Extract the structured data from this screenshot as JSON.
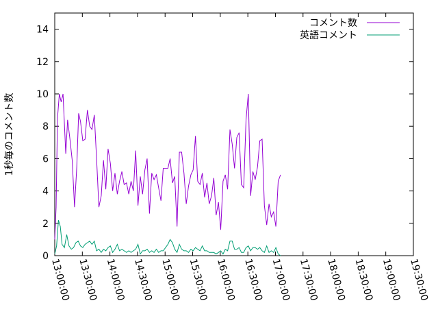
{
  "chart_data": {
    "type": "line",
    "title": "",
    "xlabel": "",
    "ylabel": "1秒毎のコメント数",
    "xlim": [
      "13:00:00",
      "19:30:00"
    ],
    "ylim": [
      0,
      15
    ],
    "yticks": [
      0,
      2,
      4,
      6,
      8,
      10,
      12,
      14
    ],
    "xticks": [
      "13:00:00",
      "13:30:00",
      "14:00:00",
      "14:30:00",
      "15:00:00",
      "15:30:00",
      "16:00:00",
      "16:30:00",
      "17:00:00",
      "17:30:00",
      "18:00:00",
      "18:30:00",
      "19:00:00",
      "19:30:00"
    ],
    "legend_position": "top-right",
    "grid": false,
    "series": [
      {
        "name": "コメント数",
        "color": "#9400d3",
        "points": [
          [
            "13:00:00",
            1.0
          ],
          [
            "13:01:30",
            3.0
          ],
          [
            "13:03:00",
            8.5
          ],
          [
            "13:05:00",
            10.0
          ],
          [
            "13:07:00",
            9.5
          ],
          [
            "13:09:00",
            10.0
          ],
          [
            "13:12:00",
            6.3
          ],
          [
            "13:14:00",
            8.4
          ],
          [
            "13:16:30",
            7.2
          ],
          [
            "13:19:00",
            5.9
          ],
          [
            "13:21:30",
            3.0
          ],
          [
            "13:24:00",
            5.5
          ],
          [
            "13:26:00",
            8.8
          ],
          [
            "13:28:00",
            8.3
          ],
          [
            "13:30:30",
            7.1
          ],
          [
            "13:33:00",
            7.2
          ],
          [
            "13:35:30",
            9.0
          ],
          [
            "13:38:00",
            8.0
          ],
          [
            "13:40:30",
            7.8
          ],
          [
            "13:43:00",
            8.7
          ],
          [
            "13:45:30",
            6.0
          ],
          [
            "13:48:00",
            3.0
          ],
          [
            "13:50:30",
            3.7
          ],
          [
            "13:53:00",
            5.9
          ],
          [
            "13:55:30",
            4.1
          ],
          [
            "13:58:00",
            6.6
          ],
          [
            "14:00:30",
            5.7
          ],
          [
            "14:03:00",
            4.0
          ],
          [
            "14:05:30",
            5.1
          ],
          [
            "14:08:00",
            3.8
          ],
          [
            "14:10:30",
            4.6
          ],
          [
            "14:13:00",
            5.2
          ],
          [
            "14:15:30",
            4.4
          ],
          [
            "14:18:00",
            4.5
          ],
          [
            "14:20:30",
            3.8
          ],
          [
            "14:23:00",
            4.6
          ],
          [
            "14:25:30",
            4.0
          ],
          [
            "14:28:00",
            6.5
          ],
          [
            "14:30:30",
            3.1
          ],
          [
            "14:33:00",
            4.9
          ],
          [
            "14:35:30",
            3.8
          ],
          [
            "14:38:00",
            5.3
          ],
          [
            "14:40:30",
            6.0
          ],
          [
            "14:43:00",
            2.6
          ],
          [
            "14:45:30",
            5.1
          ],
          [
            "14:48:00",
            4.7
          ],
          [
            "14:50:30",
            5.0
          ],
          [
            "14:53:00",
            4.2
          ],
          [
            "14:55:30",
            3.4
          ],
          [
            "14:58:00",
            5.4
          ],
          [
            "15:00:30",
            5.4
          ],
          [
            "15:03:00",
            5.4
          ],
          [
            "15:05:30",
            6.0
          ],
          [
            "15:08:00",
            4.5
          ],
          [
            "15:10:30",
            4.9
          ],
          [
            "15:13:00",
            1.8
          ],
          [
            "15:15:30",
            6.4
          ],
          [
            "15:18:00",
            6.4
          ],
          [
            "15:20:30",
            5.1
          ],
          [
            "15:23:00",
            3.2
          ],
          [
            "15:25:30",
            4.3
          ],
          [
            "15:28:00",
            5.0
          ],
          [
            "15:30:30",
            5.3
          ],
          [
            "15:33:00",
            7.4
          ],
          [
            "15:35:30",
            4.6
          ],
          [
            "15:38:00",
            4.4
          ],
          [
            "15:40:30",
            5.1
          ],
          [
            "15:43:00",
            3.6
          ],
          [
            "15:45:30",
            4.5
          ],
          [
            "15:48:00",
            3.2
          ],
          [
            "15:50:30",
            3.7
          ],
          [
            "15:53:00",
            4.8
          ],
          [
            "15:55:30",
            2.5
          ],
          [
            "15:58:00",
            3.3
          ],
          [
            "16:00:30",
            1.6
          ],
          [
            "16:03:00",
            4.6
          ],
          [
            "16:05:30",
            5.0
          ],
          [
            "16:08:00",
            4.1
          ],
          [
            "16:10:30",
            7.8
          ],
          [
            "16:13:00",
            6.9
          ],
          [
            "16:15:30",
            5.4
          ],
          [
            "16:18:00",
            7.3
          ],
          [
            "16:20:30",
            7.6
          ],
          [
            "16:23:00",
            4.4
          ],
          [
            "16:25:30",
            4.2
          ],
          [
            "16:28:00",
            8.4
          ],
          [
            "16:30:30",
            10.0
          ],
          [
            "16:33:00",
            3.7
          ],
          [
            "16:35:30",
            5.2
          ],
          [
            "16:38:00",
            4.7
          ],
          [
            "16:40:30",
            5.5
          ],
          [
            "16:43:00",
            7.1
          ],
          [
            "16:45:30",
            7.2
          ],
          [
            "16:48:00",
            3.1
          ],
          [
            "16:50:30",
            1.9
          ],
          [
            "16:53:00",
            3.2
          ],
          [
            "16:55:30",
            2.4
          ],
          [
            "16:58:00",
            2.7
          ],
          [
            "17:00:30",
            1.8
          ],
          [
            "17:03:00",
            4.6
          ],
          [
            "17:05:30",
            5.0
          ]
        ]
      },
      {
        "name": "英語コメント",
        "color": "#009e73",
        "points": [
          [
            "13:00:00",
            0.1
          ],
          [
            "13:02:00",
            0.6
          ],
          [
            "13:04:00",
            2.2
          ],
          [
            "13:06:00",
            1.8
          ],
          [
            "13:08:00",
            0.7
          ],
          [
            "13:10:30",
            0.5
          ],
          [
            "13:13:00",
            1.3
          ],
          [
            "13:15:30",
            0.6
          ],
          [
            "13:18:00",
            0.4
          ],
          [
            "13:20:30",
            0.5
          ],
          [
            "13:23:00",
            0.8
          ],
          [
            "13:25:30",
            0.9
          ],
          [
            "13:28:00",
            0.6
          ],
          [
            "13:30:30",
            0.5
          ],
          [
            "13:33:00",
            0.7
          ],
          [
            "13:35:30",
            0.8
          ],
          [
            "13:38:00",
            0.9
          ],
          [
            "13:40:30",
            0.7
          ],
          [
            "13:43:00",
            0.9
          ],
          [
            "13:45:30",
            0.3
          ],
          [
            "13:48:00",
            0.4
          ],
          [
            "13:50:30",
            0.2
          ],
          [
            "13:53:00",
            0.4
          ],
          [
            "13:55:30",
            0.3
          ],
          [
            "13:58:00",
            0.5
          ],
          [
            "14:00:30",
            0.6
          ],
          [
            "14:03:00",
            0.2
          ],
          [
            "14:05:30",
            0.4
          ],
          [
            "14:08:00",
            0.7
          ],
          [
            "14:10:30",
            0.3
          ],
          [
            "14:13:00",
            0.4
          ],
          [
            "14:15:30",
            0.3
          ],
          [
            "14:18:00",
            0.2
          ],
          [
            "14:20:30",
            0.3
          ],
          [
            "14:23:00",
            0.2
          ],
          [
            "14:25:30",
            0.3
          ],
          [
            "14:28:00",
            0.4
          ],
          [
            "14:30:30",
            0.7
          ],
          [
            "14:33:00",
            0.1
          ],
          [
            "14:35:30",
            0.3
          ],
          [
            "14:38:00",
            0.3
          ],
          [
            "14:40:30",
            0.4
          ],
          [
            "14:43:00",
            0.2
          ],
          [
            "14:45:30",
            0.3
          ],
          [
            "14:48:00",
            0.2
          ],
          [
            "14:50:30",
            0.4
          ],
          [
            "14:53:00",
            0.2
          ],
          [
            "14:55:30",
            0.3
          ],
          [
            "14:58:00",
            0.3
          ],
          [
            "15:00:30",
            0.5
          ],
          [
            "15:03:00",
            0.7
          ],
          [
            "15:05:30",
            1.0
          ],
          [
            "15:08:00",
            0.8
          ],
          [
            "15:10:30",
            0.4
          ],
          [
            "15:13:00",
            0.2
          ],
          [
            "15:15:30",
            0.7
          ],
          [
            "15:18:00",
            0.4
          ],
          [
            "15:20:30",
            0.3
          ],
          [
            "15:23:00",
            0.3
          ],
          [
            "15:25:30",
            0.2
          ],
          [
            "15:28:00",
            0.4
          ],
          [
            "15:30:30",
            0.3
          ],
          [
            "15:33:00",
            0.5
          ],
          [
            "15:35:30",
            0.4
          ],
          [
            "15:38:00",
            0.3
          ],
          [
            "15:40:30",
            0.6
          ],
          [
            "15:43:00",
            0.3
          ],
          [
            "15:45:30",
            0.3
          ],
          [
            "15:48:00",
            0.2
          ],
          [
            "15:50:30",
            0.2
          ],
          [
            "15:53:00",
            0.2
          ],
          [
            "15:55:30",
            0.1
          ],
          [
            "15:58:00",
            0.2
          ],
          [
            "16:00:30",
            0.3
          ],
          [
            "16:03:00",
            0.1
          ],
          [
            "16:05:30",
            0.4
          ],
          [
            "16:08:00",
            0.3
          ],
          [
            "16:10:30",
            0.9
          ],
          [
            "16:13:00",
            0.9
          ],
          [
            "16:15:30",
            0.4
          ],
          [
            "16:18:00",
            0.4
          ],
          [
            "16:20:30",
            0.5
          ],
          [
            "16:23:00",
            0.2
          ],
          [
            "16:25:30",
            0.2
          ],
          [
            "16:28:00",
            0.5
          ],
          [
            "16:30:30",
            0.6
          ],
          [
            "16:33:00",
            0.3
          ],
          [
            "16:35:30",
            0.5
          ],
          [
            "16:38:00",
            0.5
          ],
          [
            "16:40:30",
            0.4
          ],
          [
            "16:43:00",
            0.5
          ],
          [
            "16:45:30",
            0.3
          ],
          [
            "16:48:00",
            0.2
          ],
          [
            "16:50:30",
            0.6
          ],
          [
            "16:53:00",
            0.2
          ],
          [
            "16:55:30",
            0.3
          ],
          [
            "16:58:00",
            0.2
          ],
          [
            "17:00:30",
            0.5
          ],
          [
            "17:03:00",
            0.1
          ],
          [
            "17:05:30",
            0.0
          ]
        ]
      }
    ]
  }
}
